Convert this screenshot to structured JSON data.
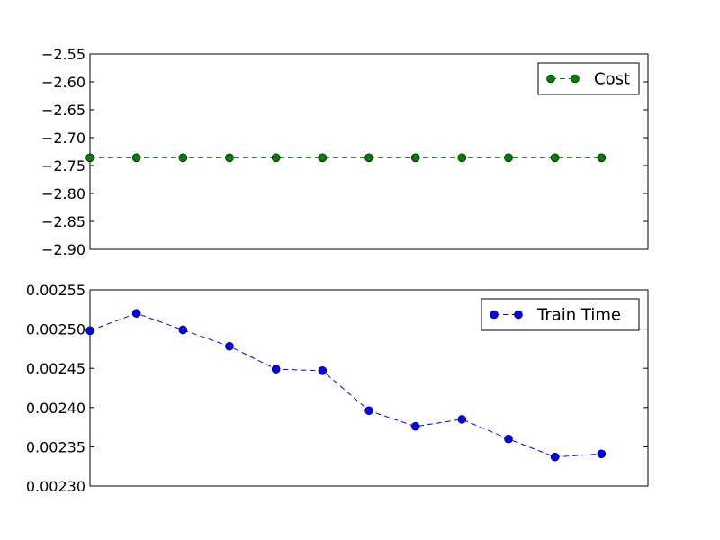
{
  "chart_data": [
    {
      "type": "line",
      "x": [
        0,
        1,
        2,
        3,
        4,
        5,
        6,
        7,
        8,
        9,
        10,
        11
      ],
      "xlim": [
        0,
        12
      ],
      "ylim": [
        -2.9,
        -2.55
      ],
      "yticks": [
        -2.55,
        -2.6,
        -2.65,
        -2.7,
        -2.75,
        -2.8,
        -2.85,
        -2.9
      ],
      "ytick_labels": [
        "−2.55",
        "−2.60",
        "−2.65",
        "−2.70",
        "−2.75",
        "−2.80",
        "−2.85",
        "−2.90"
      ],
      "xtick_labels": [],
      "series": [
        {
          "name": "Cost",
          "color": "#008000",
          "line_style": "dashed",
          "marker": "circle",
          "values": [
            -2.736,
            -2.736,
            -2.736,
            -2.736,
            -2.736,
            -2.736,
            -2.736,
            -2.736,
            -2.736,
            -2.736,
            -2.736,
            -2.736
          ]
        }
      ],
      "legend_placement": "top-right",
      "grid": false
    },
    {
      "type": "line",
      "x": [
        0,
        1,
        2,
        3,
        4,
        5,
        6,
        7,
        8,
        9,
        10,
        11
      ],
      "xlim": [
        0,
        12
      ],
      "ylim": [
        0.0023,
        0.00255
      ],
      "yticks": [
        0.00255,
        0.0025,
        0.00245,
        0.0024,
        0.00235,
        0.0023
      ],
      "ytick_labels": [
        "0.00255",
        "0.00250",
        "0.00245",
        "0.00240",
        "0.00235",
        "0.00230"
      ],
      "xtick_labels": [],
      "series": [
        {
          "name": "Train Time",
          "color": "#0000ff",
          "line_style": "dashed",
          "marker": "circle",
          "values": [
            0.002498,
            0.00252,
            0.002499,
            0.002478,
            0.002449,
            0.002447,
            0.002396,
            0.002376,
            0.002385,
            0.00236,
            0.002337,
            0.002341
          ]
        }
      ],
      "legend_placement": "top-right",
      "grid": false
    }
  ]
}
